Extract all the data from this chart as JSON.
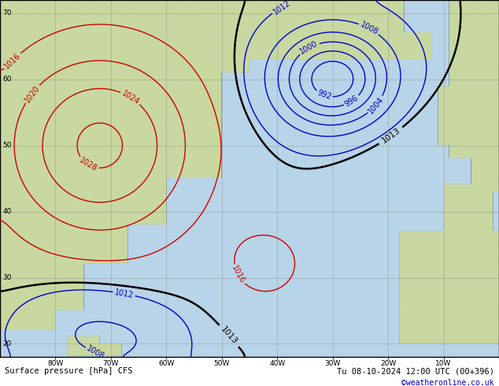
{
  "title_left": "Surface pressure [hPa] CFS",
  "title_right": "Tu 08-10-2024 12:00 UTC (00+396)",
  "credit": "©weatheronline.co.uk",
  "ocean_color": "#b8d4e8",
  "land_color": "#c8d8a0",
  "grid_color": "#888888",
  "contour_color_blue": "#0000cc",
  "contour_color_red": "#cc0000",
  "contour_color_black": "#000000",
  "fig_width": 6.34,
  "fig_height": 4.9,
  "dpi": 100,
  "lon_min": -90,
  "lon_max": 0,
  "lat_min": 18,
  "lat_max": 72,
  "lon_ticks": [
    -80,
    -70,
    -60,
    -50,
    -40,
    -30,
    -20,
    -10
  ],
  "lat_ticks": [
    20,
    30,
    40,
    50,
    60,
    70
  ]
}
